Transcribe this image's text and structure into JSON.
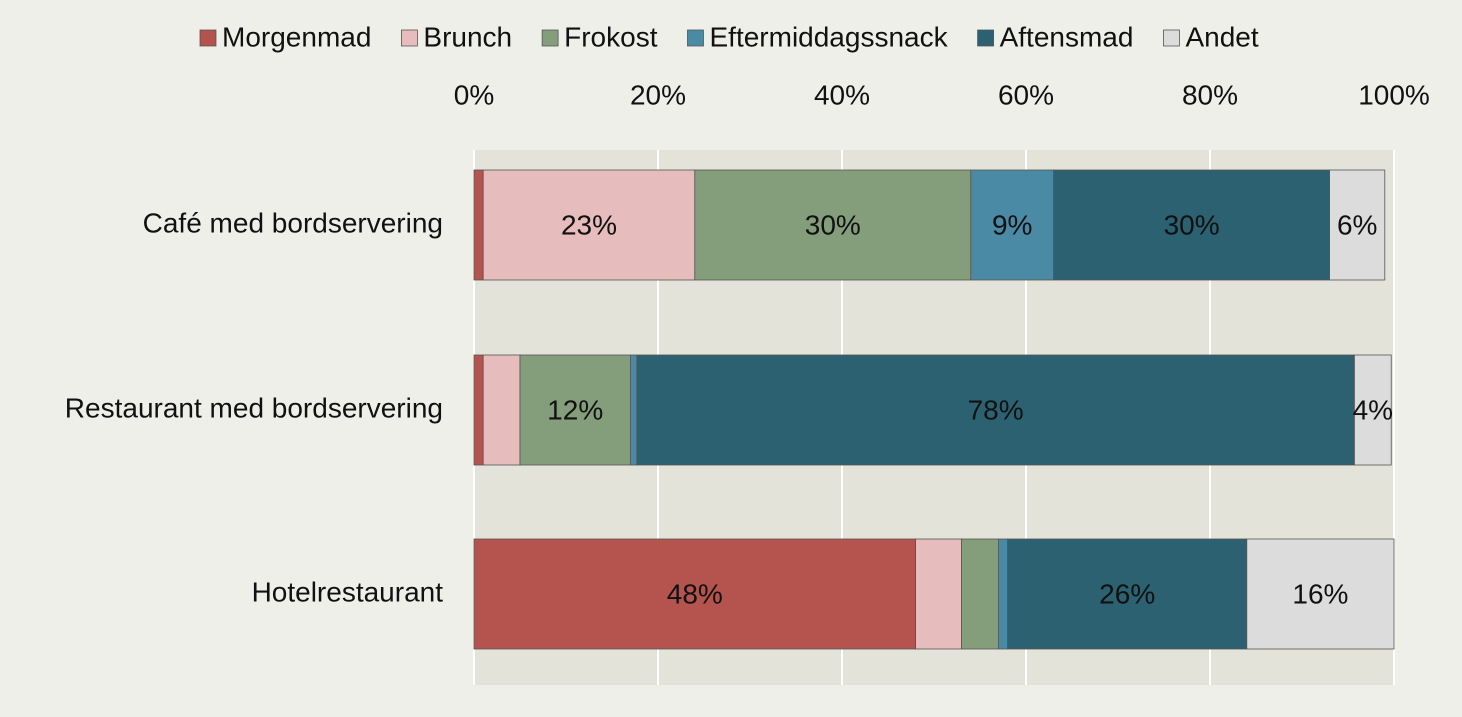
{
  "chart_data": {
    "type": "stacked_bar_horizontal",
    "categories": [
      "Café med bordservering",
      "Restaurant med bordservering",
      "Hotelrestaurant"
    ],
    "series": [
      {
        "name": "Morgenmad",
        "color": "#b5534f",
        "values": [
          1,
          1,
          48
        ],
        "value_labels": [
          null,
          null,
          "48%"
        ]
      },
      {
        "name": "Brunch",
        "color": "#e6bcbc",
        "values": [
          23,
          4,
          5
        ],
        "value_labels": [
          "23%",
          null,
          null
        ]
      },
      {
        "name": "Frokost",
        "color": "#849e7c",
        "values": [
          30,
          12,
          4
        ],
        "value_labels": [
          "30%",
          "12%",
          null
        ]
      },
      {
        "name": "Eftermiddagssnack",
        "color": "#4a8aa5",
        "values": [
          9,
          0.7,
          1
        ],
        "value_labels": [
          "9%",
          null,
          null
        ]
      },
      {
        "name": "Aftensmad",
        "color": "#2b6170",
        "values": [
          30,
          78,
          26
        ],
        "value_labels": [
          "30%",
          "78%",
          "26%"
        ]
      },
      {
        "name": "Andet",
        "color": "#dcdcdc",
        "values": [
          6,
          4,
          16
        ],
        "value_labels": [
          "6%",
          "4%",
          "16%"
        ]
      }
    ],
    "xlim": [
      0,
      100
    ],
    "xticks": [
      {
        "value": 0,
        "label": "0%"
      },
      {
        "value": 20,
        "label": "20%"
      },
      {
        "value": 40,
        "label": "40%"
      },
      {
        "value": 60,
        "label": "60%"
      },
      {
        "value": 80,
        "label": "80%"
      },
      {
        "value": 100,
        "label": "100%"
      }
    ],
    "grid": true
  }
}
